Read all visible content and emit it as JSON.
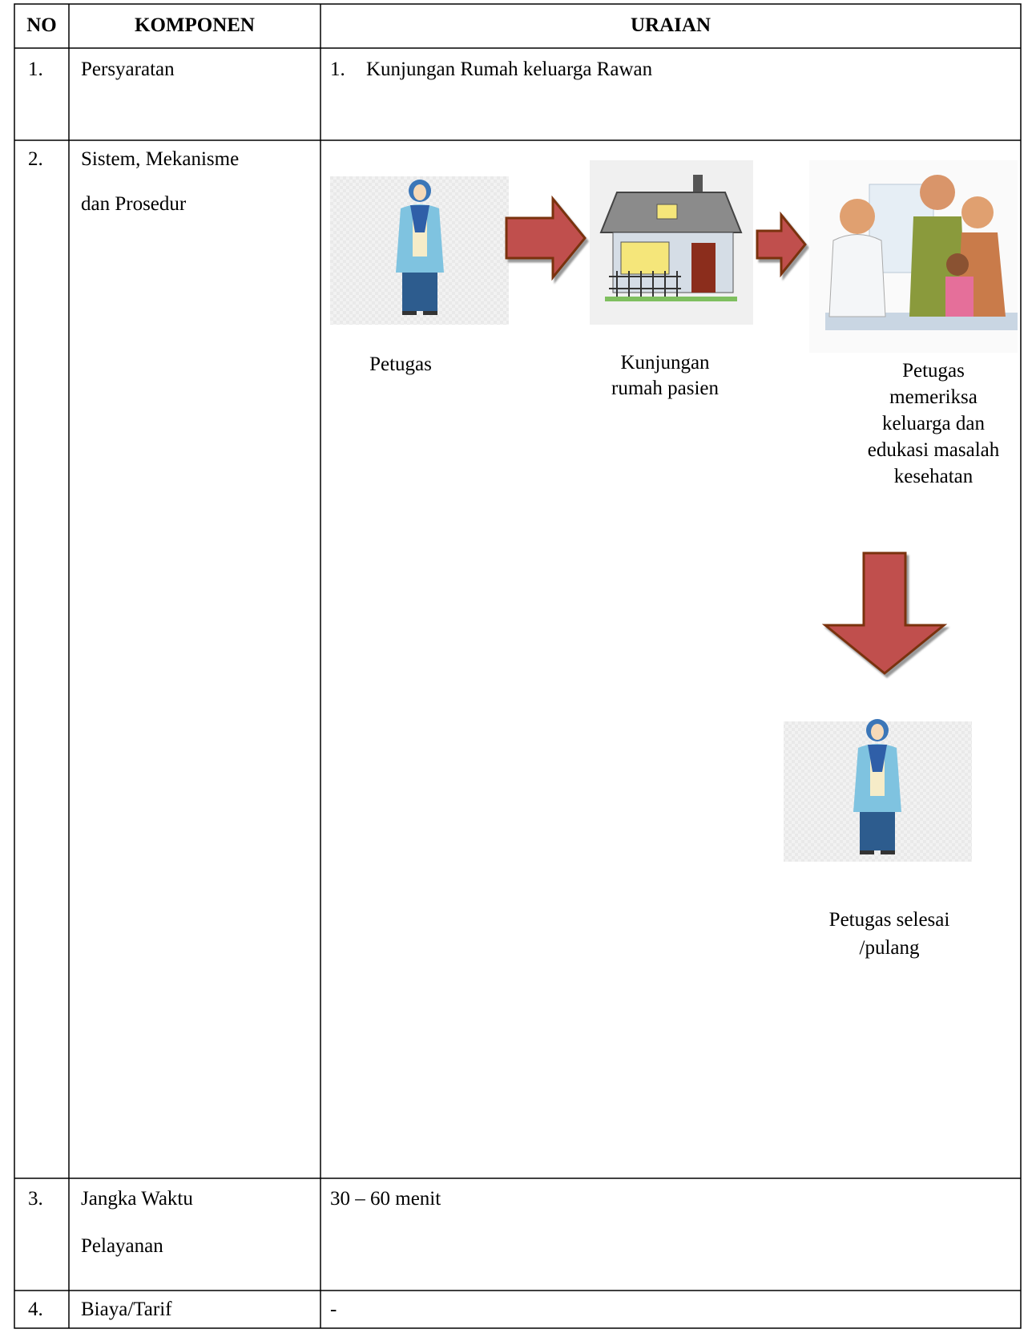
{
  "table": {
    "headers": [
      "NO",
      "KOMPONEN",
      "URAIAN"
    ],
    "rows": [
      {
        "no": "1.",
        "component": [
          "Persyaratan"
        ],
        "detail": {
          "marker": "1.",
          "text": "Kunjungan Rumah keluarga Rawan"
        }
      },
      {
        "no": "2.",
        "component": [
          "Sistem, Mekanisme",
          "dan Prosedur"
        ]
      },
      {
        "no": "3.",
        "component": [
          "Jangka Waktu",
          "Pelayanan"
        ],
        "detail": "30 – 60 menit"
      },
      {
        "no": "4.",
        "component": [
          "Biaya/Tarif"
        ],
        "detail": "-"
      }
    ]
  },
  "flow": {
    "nodes": [
      {
        "label": [
          "Petugas"
        ]
      },
      {
        "label": [
          "Kunjungan",
          "rumah pasien"
        ]
      },
      {
        "label": [
          "Petugas",
          "memeriksa",
          "keluarga dan",
          "edukasi masalah",
          "kesehatan"
        ]
      },
      {
        "label": [
          "Petugas selesai",
          "/pulang"
        ]
      }
    ]
  }
}
